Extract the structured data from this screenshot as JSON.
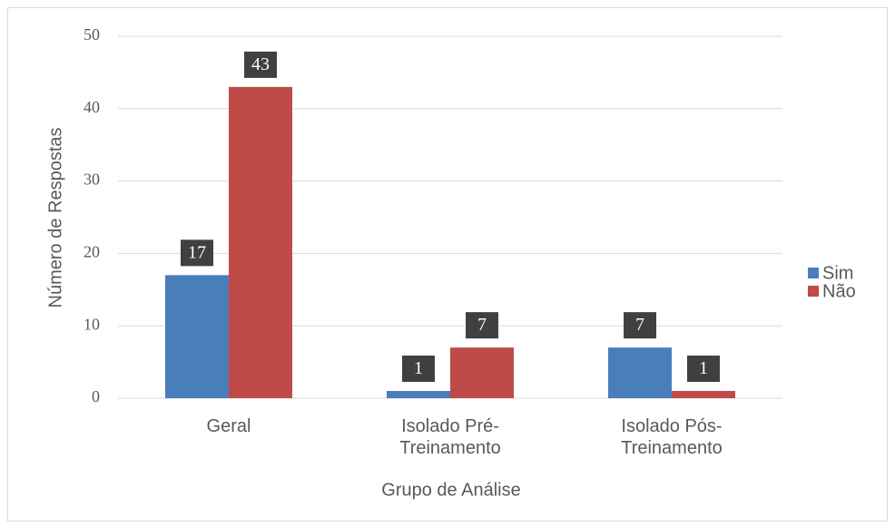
{
  "chart_data": {
    "type": "bar",
    "categories": [
      "Geral",
      "Isolado Pré-Treinamento",
      "Isolado Pós-Treinamento"
    ],
    "series": [
      {
        "name": "Sim",
        "color": "#4a7ebb",
        "values": [
          17,
          1,
          7
        ]
      },
      {
        "name": "Não",
        "color": "#be4b48",
        "values": [
          43,
          7,
          1
        ]
      }
    ],
    "xlabel": "Grupo de Análise",
    "ylabel": "Número de Respostas",
    "ylim": [
      0,
      50
    ],
    "yticks": [
      0,
      10,
      20,
      30,
      40,
      50
    ],
    "grid": true,
    "legend": "right"
  }
}
